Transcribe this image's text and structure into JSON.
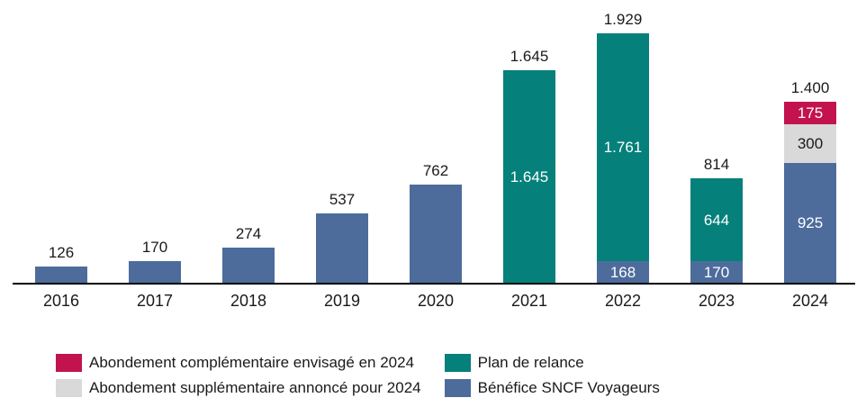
{
  "colors": {
    "blue": "#4D6C9C",
    "teal": "#05807A",
    "gray": "#D9D9D9",
    "red": "#C3134E",
    "axis": "#000000",
    "text": "#1A1A1A",
    "label_light": "#FFFFFF"
  },
  "chart_data": {
    "type": "bar",
    "stacked": true,
    "grid": false,
    "legend_position": "bottom",
    "categories": [
      "2016",
      "2017",
      "2018",
      "2019",
      "2020",
      "2021",
      "2022",
      "2023",
      "2024"
    ],
    "series": [
      {
        "name": "Bénéfice SNCF Voyageurs",
        "key": "blue",
        "color": "#4D6C9C",
        "values": [
          126,
          170,
          274,
          537,
          762,
          0,
          168,
          170,
          925
        ],
        "inside_labels": [
          "",
          "",
          "",
          "",
          "",
          "",
          "168",
          "170",
          "925"
        ],
        "label_color": "#FFFFFF"
      },
      {
        "name": "Plan de relance",
        "key": "teal",
        "color": "#05807A",
        "values": [
          0,
          0,
          0,
          0,
          0,
          1645,
          1761,
          644,
          0
        ],
        "inside_labels": [
          "",
          "",
          "",
          "",
          "",
          "1.645",
          "1.761",
          "644",
          ""
        ],
        "label_color": "#FFFFFF"
      },
      {
        "name": "Abondement supplémentaire annoncé pour 2024",
        "key": "gray",
        "color": "#D9D9D9",
        "values": [
          0,
          0,
          0,
          0,
          0,
          0,
          0,
          0,
          300
        ],
        "inside_labels": [
          "",
          "",
          "",
          "",
          "",
          "",
          "",
          "",
          "300"
        ],
        "label_color": "#1A1A1A"
      },
      {
        "name": "Abondement complémentaire envisagé en 2024",
        "key": "red",
        "color": "#C3134E",
        "values": [
          0,
          0,
          0,
          0,
          0,
          0,
          0,
          0,
          175
        ],
        "inside_labels": [
          "",
          "",
          "",
          "",
          "",
          "",
          "",
          "",
          "175"
        ],
        "label_color": "#FFFFFF"
      }
    ],
    "totals": [
      126,
      170,
      274,
      537,
      762,
      1645,
      1929,
      814,
      1400
    ],
    "total_labels": [
      "126",
      "170",
      "274",
      "537",
      "762",
      "1.645",
      "1.929",
      "814",
      "1.400"
    ],
    "ylim": [
      0,
      2100
    ]
  },
  "legend": [
    {
      "label": "Abondement complémentaire envisagé en 2024",
      "key": "red",
      "color": "#C3134E"
    },
    {
      "label": "Abondement supplémentaire annoncé pour 2024",
      "key": "gray",
      "color": "#D9D9D9"
    },
    {
      "label": "Plan de relance",
      "key": "teal",
      "color": "#05807A"
    },
    {
      "label": "Bénéfice SNCF Voyageurs",
      "key": "blue",
      "color": "#4D6C9C"
    }
  ]
}
